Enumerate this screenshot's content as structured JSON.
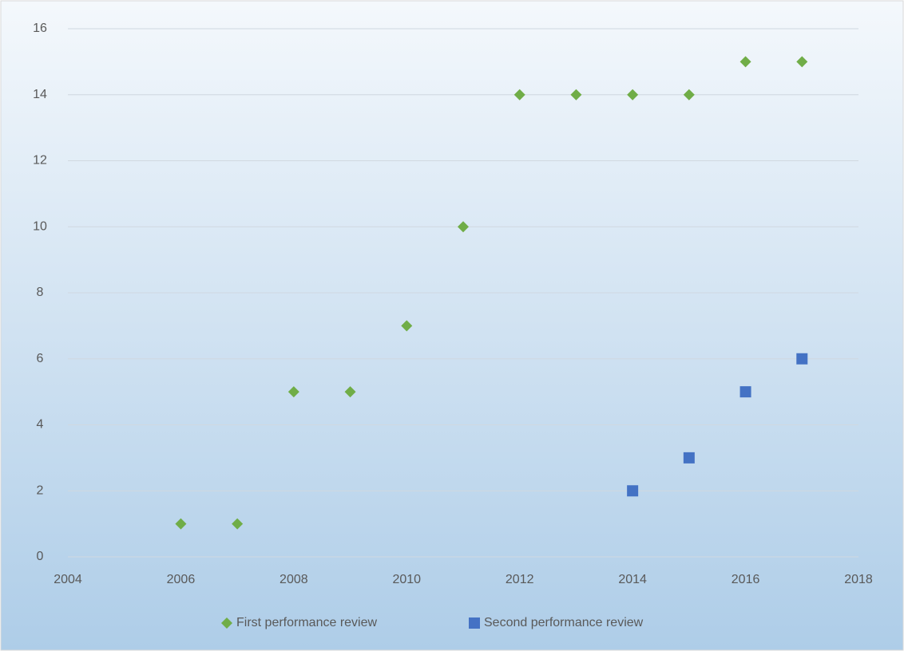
{
  "chart_data": {
    "type": "scatter",
    "series": [
      {
        "name": "First performance review",
        "color": "#70ad47",
        "marker": "diamond",
        "x": [
          2006,
          2007,
          2008,
          2009,
          2010,
          2011,
          2012,
          2013,
          2014,
          2015,
          2016,
          2017
        ],
        "values": [
          1,
          1,
          5,
          5,
          7,
          10,
          14,
          14,
          14,
          14,
          15,
          15
        ]
      },
      {
        "name": "Second performance review",
        "color": "#4472c4",
        "marker": "square",
        "x": [
          2014,
          2015,
          2016,
          2017
        ],
        "values": [
          2,
          3,
          5,
          6
        ]
      }
    ],
    "xlim": [
      2004,
      2018
    ],
    "xticks": [
      2004,
      2006,
      2008,
      2010,
      2012,
      2014,
      2016,
      2018
    ],
    "ylim": [
      0,
      16
    ],
    "yticks": [
      0,
      2,
      4,
      6,
      8,
      10,
      12,
      14,
      16
    ],
    "grid": true,
    "legend": "bottom"
  }
}
